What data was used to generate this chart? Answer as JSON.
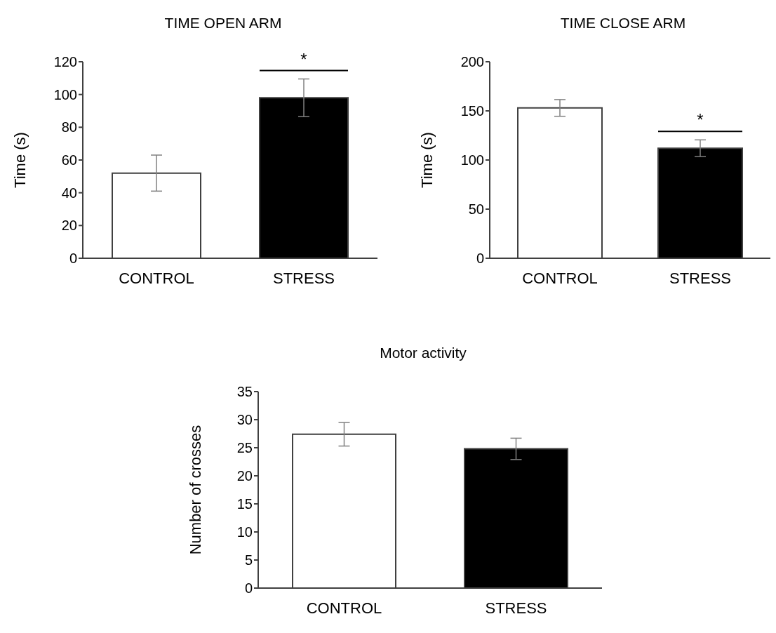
{
  "chart_data": [
    {
      "type": "bar",
      "title": "TIME OPEN ARM",
      "ylabel": "Time (s)",
      "categories": [
        "CONTROL",
        "STRESS"
      ],
      "values": [
        52,
        98
      ],
      "errors": [
        11,
        11.5
      ],
      "colors": [
        "#ffffff",
        "#000000"
      ],
      "ylim": [
        0,
        120
      ],
      "yticks": [
        0,
        20,
        40,
        60,
        80,
        100,
        120
      ],
      "annotations": [
        "*"
      ]
    },
    {
      "type": "bar",
      "title": "TIME CLOSE ARM",
      "ylabel": "Time (s)",
      "categories": [
        "CONTROL",
        "STRESS"
      ],
      "values": [
        153,
        112
      ],
      "errors": [
        8.5,
        8.5
      ],
      "colors": [
        "#ffffff",
        "#000000"
      ],
      "ylim": [
        0,
        200
      ],
      "yticks": [
        0,
        50,
        100,
        150,
        200
      ],
      "annotations": [
        "*"
      ]
    },
    {
      "type": "bar",
      "title": "Motor activity",
      "ylabel": "Number of crosses",
      "categories": [
        "CONTROL",
        "STRESS"
      ],
      "values": [
        27.4,
        24.8
      ],
      "errors": [
        2.1,
        1.9
      ],
      "colors": [
        "#ffffff",
        "#000000"
      ],
      "ylim": [
        0,
        35
      ],
      "yticks": [
        0,
        5,
        10,
        15,
        20,
        25,
        30,
        35
      ]
    }
  ]
}
